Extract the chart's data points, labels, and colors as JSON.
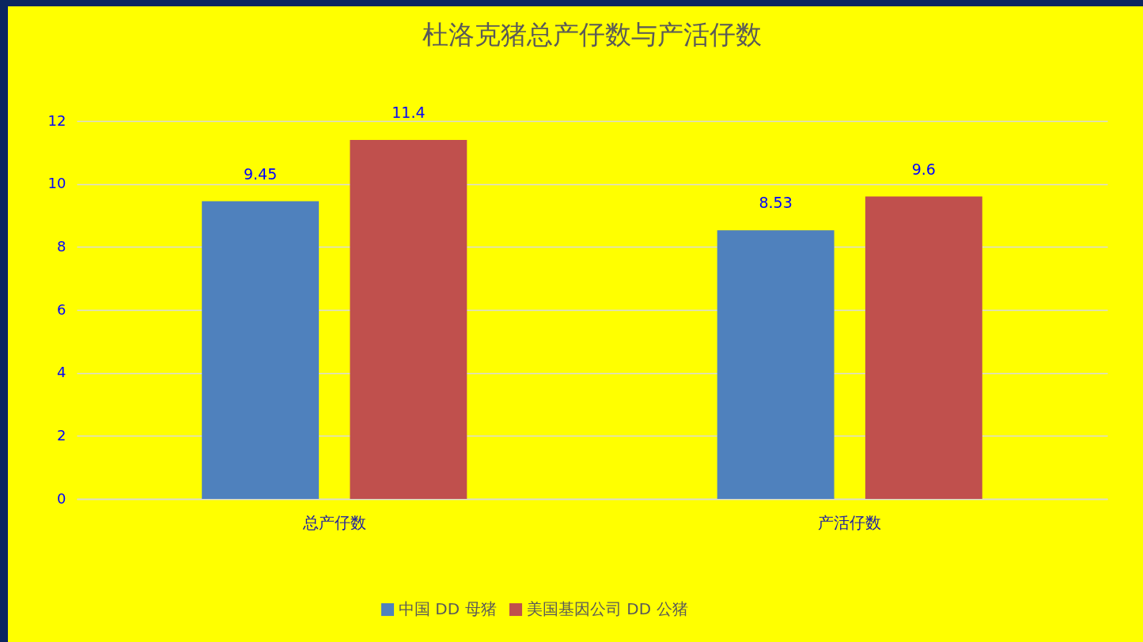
{
  "chart_data": {
    "type": "bar",
    "title": "杜洛克猪总产仔数与产活仔数",
    "categories": [
      "总产仔数",
      "产活仔数"
    ],
    "series": [
      {
        "name": "中国 DD 母猪",
        "color": "#4f81bd",
        "values": [
          9.45,
          8.53
        ]
      },
      {
        "name": "美国基因公司 DD 公猪",
        "color": "#c0504d",
        "values": [
          11.4,
          9.6
        ]
      }
    ],
    "ylim": [
      0,
      12
    ],
    "yticks": [
      0,
      2,
      4,
      6,
      8,
      10,
      12
    ],
    "grid": "y",
    "legend": "bottom",
    "data_labels": true
  }
}
